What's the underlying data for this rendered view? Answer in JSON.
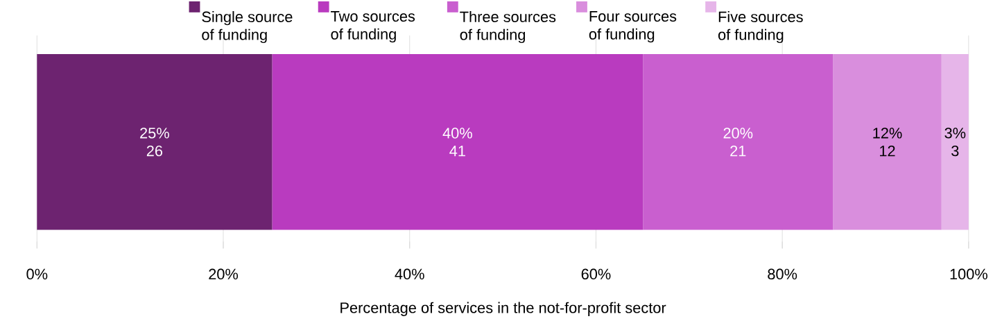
{
  "chart_data": {
    "type": "bar",
    "orientation": "horizontal",
    "stacked": true,
    "xlabel": "Percentage of services in the not-for-profit sector",
    "categories": [
      null
    ],
    "series": [
      {
        "name": "Single source of funding",
        "color": "#6d2370",
        "values": [
          25.24
        ],
        "value_labels": [
          "25% 26"
        ]
      },
      {
        "name": "Two sources of funding",
        "color": "#b93bbf",
        "values": [
          39.81
        ],
        "value_labels": [
          "40% 41"
        ]
      },
      {
        "name": "Three sources of funding",
        "color": "#c95fcf",
        "values": [
          20.39
        ],
        "value_labels": [
          "20% 21"
        ]
      },
      {
        "name": "Four sources of funding",
        "color": "#d98edd",
        "values": [
          11.65
        ],
        "value_labels": [
          "12% 12"
        ]
      },
      {
        "name": "Five sources of funding",
        "color": "#e6b5e9",
        "values": [
          2.91
        ],
        "value_labels": [
          "3% 3"
        ]
      }
    ],
    "xlim": [
      0,
      100
    ],
    "xticks": [
      {
        "value": 0,
        "label": "0%"
      },
      {
        "value": 20,
        "label": "20%"
      },
      {
        "value": 40,
        "label": "40%"
      },
      {
        "value": 60,
        "label": "60%"
      },
      {
        "value": 80,
        "label": "80%"
      },
      {
        "value": 100,
        "label": "100%"
      }
    ],
    "grid": "x",
    "legend": "top"
  }
}
